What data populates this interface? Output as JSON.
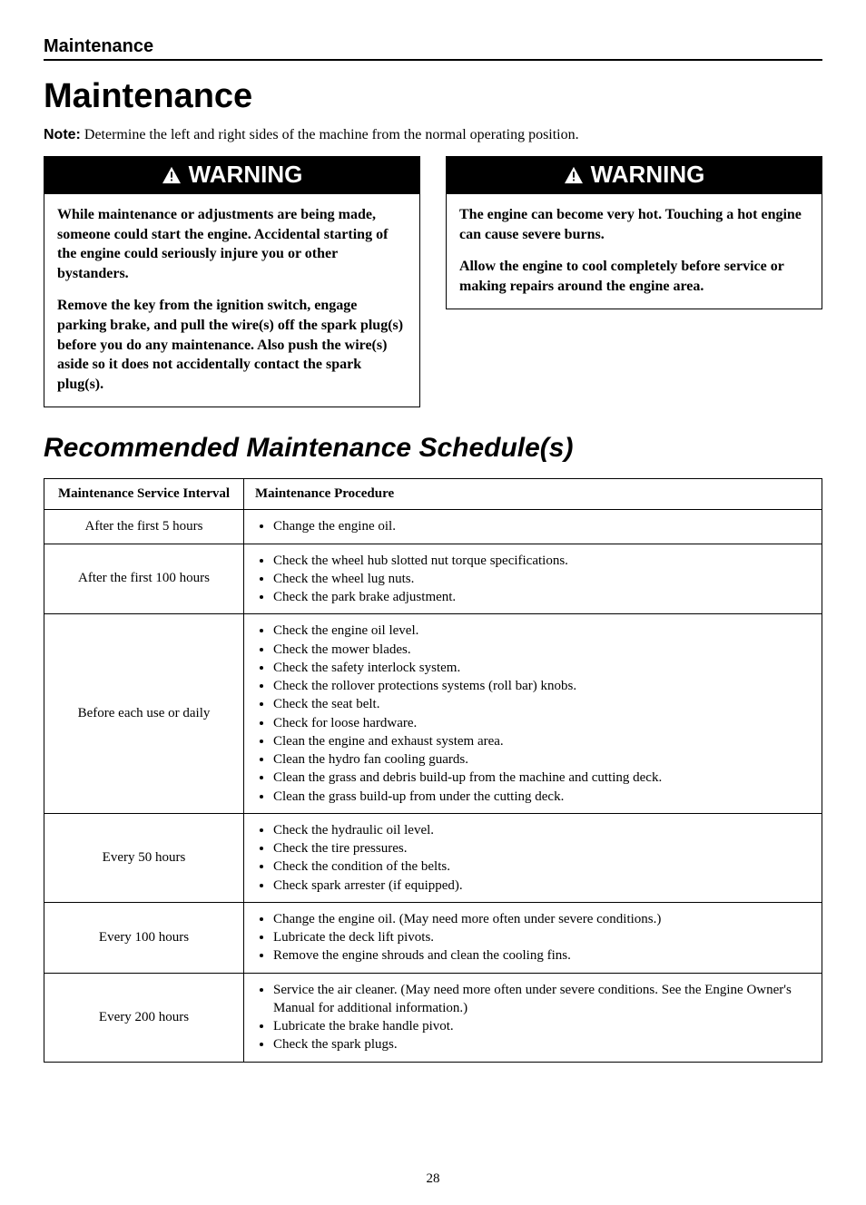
{
  "header": {
    "section_header": "Maintenance",
    "main_title": "Maintenance",
    "note_label": "Note:",
    "note_text": "Determine the left and right sides of the machine from the normal operating position."
  },
  "warnings": [
    {
      "label": "WARNING",
      "paragraphs": [
        "While maintenance or adjustments are being made, someone could start the engine. Accidental starting of the engine could seriously injure you or other bystanders.",
        "Remove the key from the ignition switch, engage parking brake, and pull the wire(s) off the spark plug(s) before you do any maintenance. Also push the wire(s) aside so it does not accidentally contact the spark plug(s)."
      ]
    },
    {
      "label": "WARNING",
      "paragraphs": [
        "The engine can become very hot. Touching a hot engine can cause severe burns.",
        "Allow the engine to cool completely before service or making repairs around the engine area."
      ]
    }
  ],
  "schedule": {
    "heading": "Recommended Maintenance Schedule(s)",
    "columns": [
      "Maintenance Service Interval",
      "Maintenance Procedure"
    ],
    "rows": [
      {
        "interval": "After the first 5 hours",
        "procedures": [
          "Change the engine oil."
        ]
      },
      {
        "interval": "After the first 100 hours",
        "procedures": [
          "Check the wheel hub slotted nut torque specifications.",
          "Check the wheel lug nuts.",
          "Check the park brake adjustment."
        ]
      },
      {
        "interval": "Before each use or daily",
        "procedures": [
          "Check the engine oil level.",
          "Check the mower blades.",
          "Check the safety interlock system.",
          "Check the rollover protections systems (roll bar) knobs.",
          "Check the seat belt.",
          "Check for loose hardware.",
          "Clean the engine and exhaust system area.",
          "Clean the hydro fan cooling guards.",
          "Clean the grass and debris build-up from the machine and cutting deck.",
          "Clean the grass build-up from under the cutting deck."
        ]
      },
      {
        "interval": "Every 50 hours",
        "procedures": [
          "Check the hydraulic oil level.",
          "Check the tire pressures.",
          "Check the condition of the belts.",
          "Check spark arrester (if equipped)."
        ]
      },
      {
        "interval": "Every 100 hours",
        "procedures": [
          "Change the engine oil. (May need more often under severe conditions.)",
          "Lubricate the deck lift pivots.",
          "Remove the engine shrouds and clean the cooling fins."
        ]
      },
      {
        "interval": "Every 200 hours",
        "procedures": [
          "Service the air cleaner. (May need more often under severe conditions. See the Engine Owner's Manual for additional information.)",
          "Lubricate the brake handle pivot.",
          "Check the spark plugs."
        ]
      }
    ]
  },
  "page_number": "28",
  "colors": {
    "text": "#000000",
    "background": "#ffffff",
    "warning_bg": "#000000",
    "warning_fg": "#ffffff"
  }
}
